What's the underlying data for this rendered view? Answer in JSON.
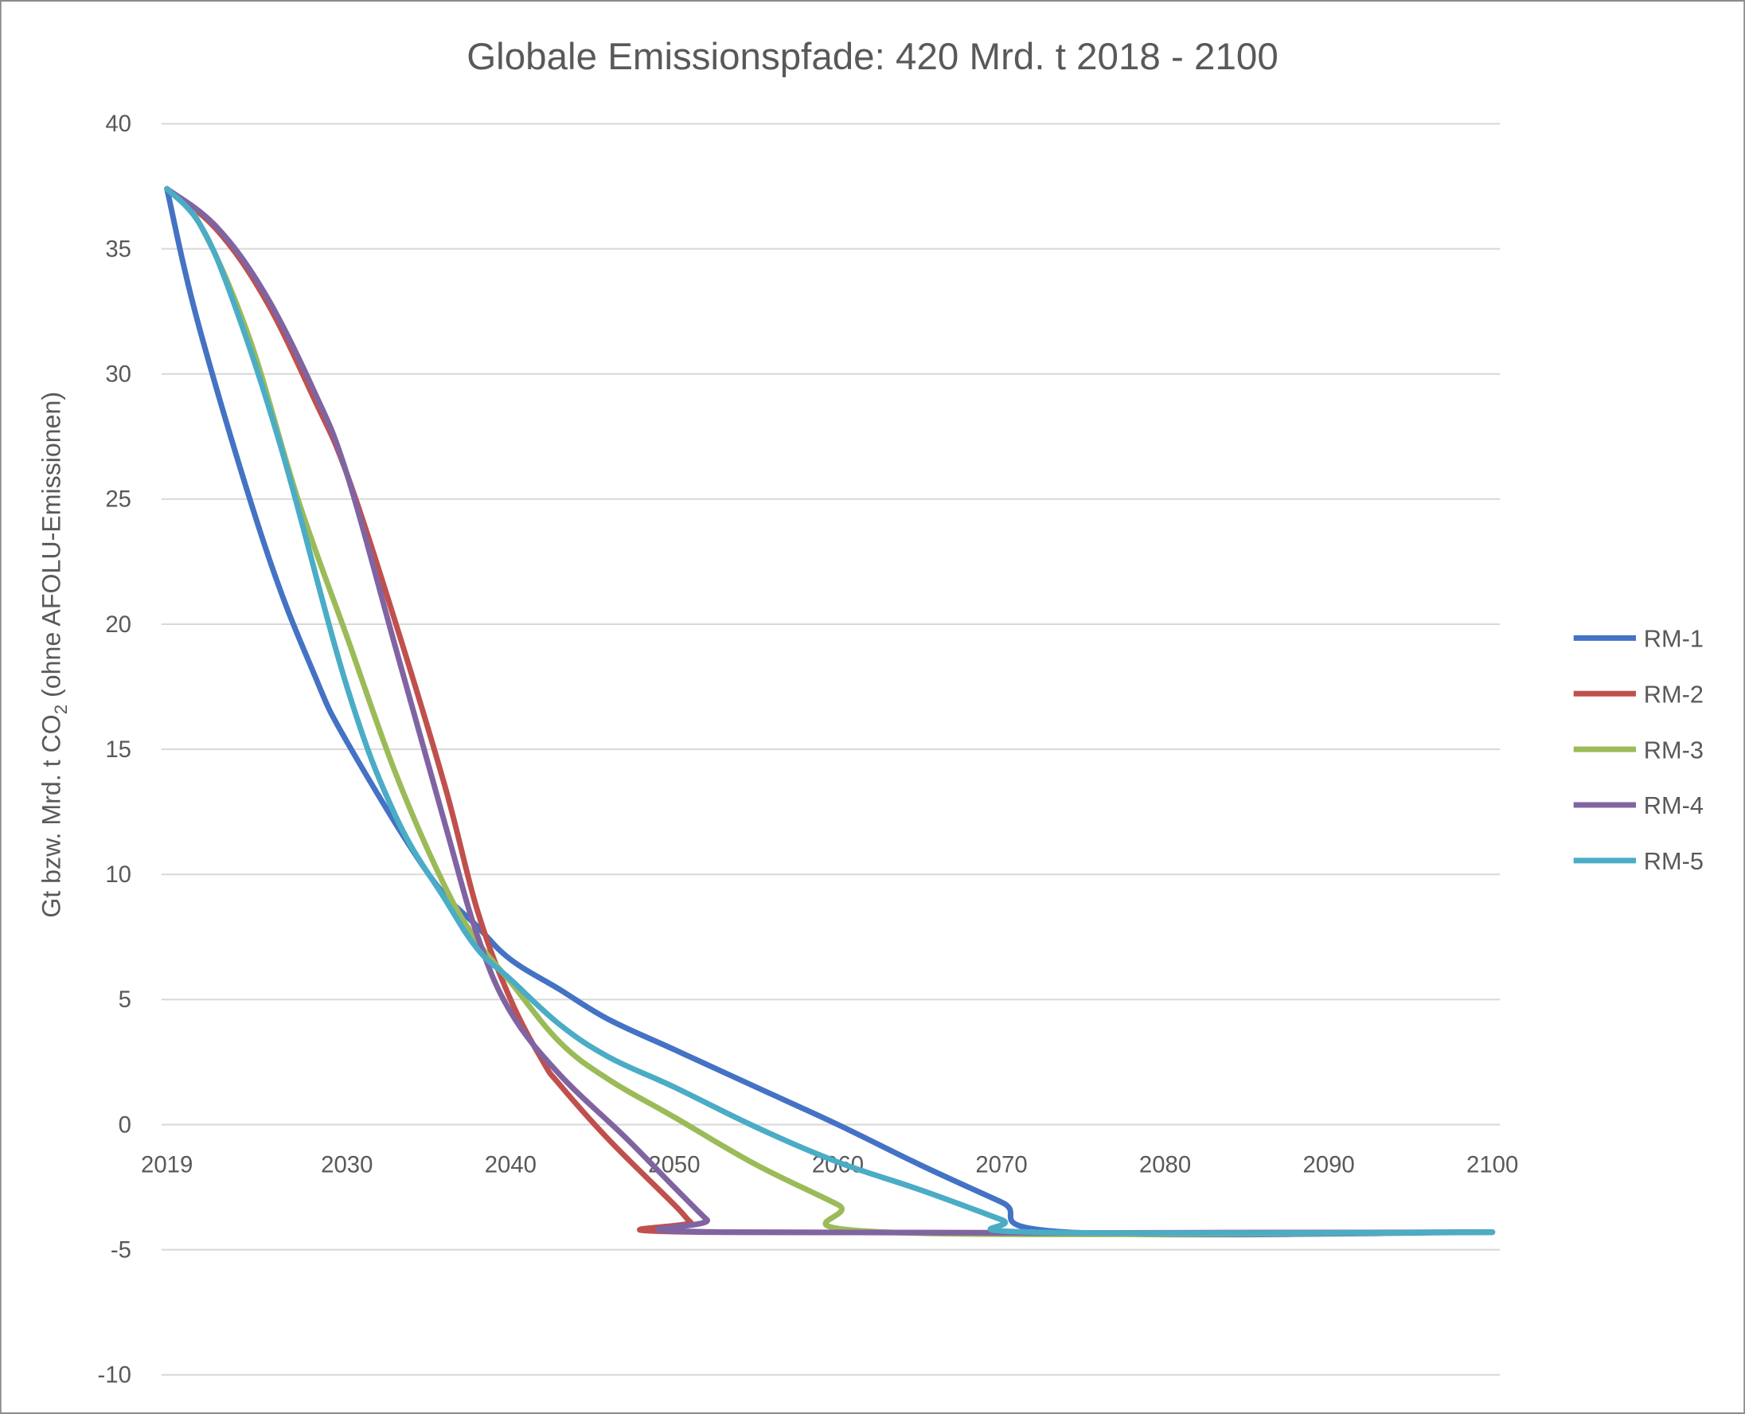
{
  "chart_data": {
    "type": "line",
    "title": "Globale Emissionspfade: 420 Mrd. t 2018 - 2100",
    "xlabel": "",
    "ylabel": {
      "main": "Gt bzw. Mrd. t CO",
      "sub": "2",
      "rest": " (ohne AFOLU-Emissionen)"
    },
    "xlim": [
      2019,
      2100
    ],
    "ylim": [
      -10,
      40
    ],
    "x_ticks": [
      2019,
      2030,
      2040,
      2050,
      2060,
      2070,
      2080,
      2090,
      2100
    ],
    "y_ticks": [
      40,
      35,
      30,
      25,
      20,
      15,
      10,
      5,
      0,
      -5,
      -10
    ],
    "grid": "horizontal",
    "legend_position": "right",
    "series": [
      {
        "name": "RM-1",
        "color": "#4472C4",
        "x": [
          2019,
          2021,
          2025,
          2028,
          2030,
          2035,
          2038,
          2040,
          2043,
          2046,
          2050,
          2055,
          2060,
          2065,
          2070,
          2074,
          2100
        ],
        "y": [
          37.4,
          31.8,
          23.1,
          18.0,
          15.3,
          10.0,
          7.9,
          6.6,
          5.4,
          4.2,
          3.0,
          1.5,
          0.0,
          -1.6,
          -3.1,
          -4.3,
          -4.3
        ]
      },
      {
        "name": "RM-2",
        "color": "#C0504D",
        "x": [
          2019,
          2022,
          2025,
          2028,
          2030,
          2033,
          2036,
          2038,
          2040,
          2042,
          2043,
          2046,
          2050,
          2051,
          2052,
          2100
        ],
        "y": [
          37.4,
          35.8,
          33.0,
          29.0,
          26.0,
          20.0,
          13.5,
          8.5,
          5.0,
          2.5,
          1.6,
          -0.6,
          -3.2,
          -3.9,
          -4.3,
          -4.3
        ]
      },
      {
        "name": "RM-3",
        "color": "#9BBB59",
        "x": [
          2019,
          2021,
          2024,
          2027,
          2030,
          2033,
          2036,
          2038,
          2040,
          2043,
          2046,
          2050,
          2055,
          2060,
          2063,
          2100
        ],
        "y": [
          37.4,
          36.0,
          31.5,
          25.0,
          19.5,
          14.0,
          9.5,
          7.3,
          5.7,
          3.3,
          1.8,
          0.3,
          -1.6,
          -3.2,
          -4.3,
          -4.3
        ]
      },
      {
        "name": "RM-4",
        "color": "#8064A2",
        "x": [
          2019,
          2022,
          2025,
          2028,
          2030,
          2033,
          2036,
          2038,
          2040,
          2043,
          2047,
          2050,
          2052,
          2053,
          2100
        ],
        "y": [
          37.4,
          35.9,
          33.2,
          29.3,
          26.0,
          19.0,
          12.0,
          7.5,
          4.5,
          2.0,
          -0.5,
          -2.5,
          -3.8,
          -4.3,
          -4.3
        ]
      },
      {
        "name": "RM-5",
        "color": "#4BACC6",
        "x": [
          2019,
          2021,
          2023,
          2026,
          2030,
          2033,
          2036,
          2038,
          2040,
          2043,
          2046,
          2050,
          2055,
          2060,
          2065,
          2070,
          2072,
          2100
        ],
        "y": [
          37.4,
          36.0,
          33.0,
          27.0,
          17.5,
          12.3,
          9.0,
          7.0,
          5.8,
          4.0,
          2.7,
          1.5,
          -0.1,
          -1.5,
          -2.6,
          -3.8,
          -4.3,
          -4.3
        ]
      }
    ]
  }
}
